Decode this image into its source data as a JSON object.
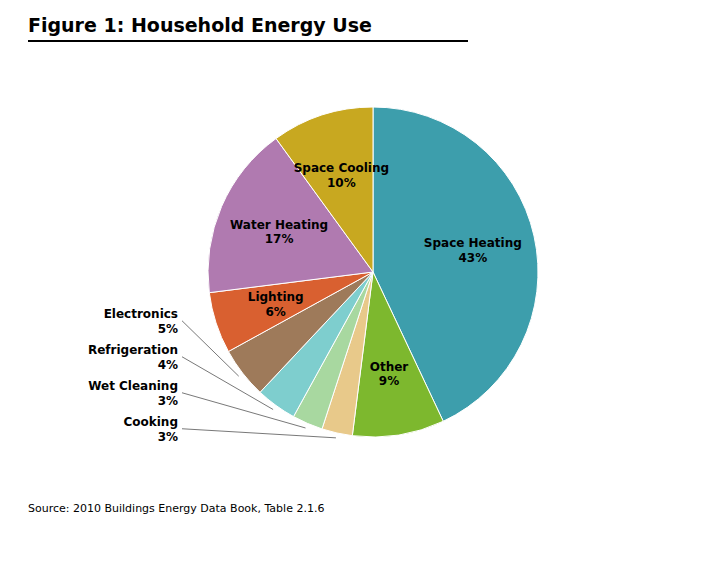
{
  "chart_data": {
    "type": "pie",
    "title": "Figure 1: Household Energy Use",
    "annotations": [
      "Source: 2010 Buildings Energy Data Book, Table 2.1.6"
    ],
    "categories": [
      "Space Heating",
      "Other",
      "Cooking",
      "Wet Cleaning",
      "Refrigeration",
      "Electronics",
      "Lighting",
      "Water Heating",
      "Space Cooling"
    ],
    "values": [
      43,
      9,
      3,
      3,
      4,
      5,
      6,
      17,
      10
    ],
    "value_labels": [
      "43%",
      "9%",
      "3%",
      "3%",
      "4%",
      "5%",
      "6%",
      "17%",
      "10%"
    ],
    "colors": [
      "#3d9eac",
      "#7db82e",
      "#e8c98a",
      "#a8d8a0",
      "#7ecece",
      "#9e7a5a",
      "#d96030",
      "#b07ab0",
      "#c8a820"
    ],
    "data_labels": true
  }
}
